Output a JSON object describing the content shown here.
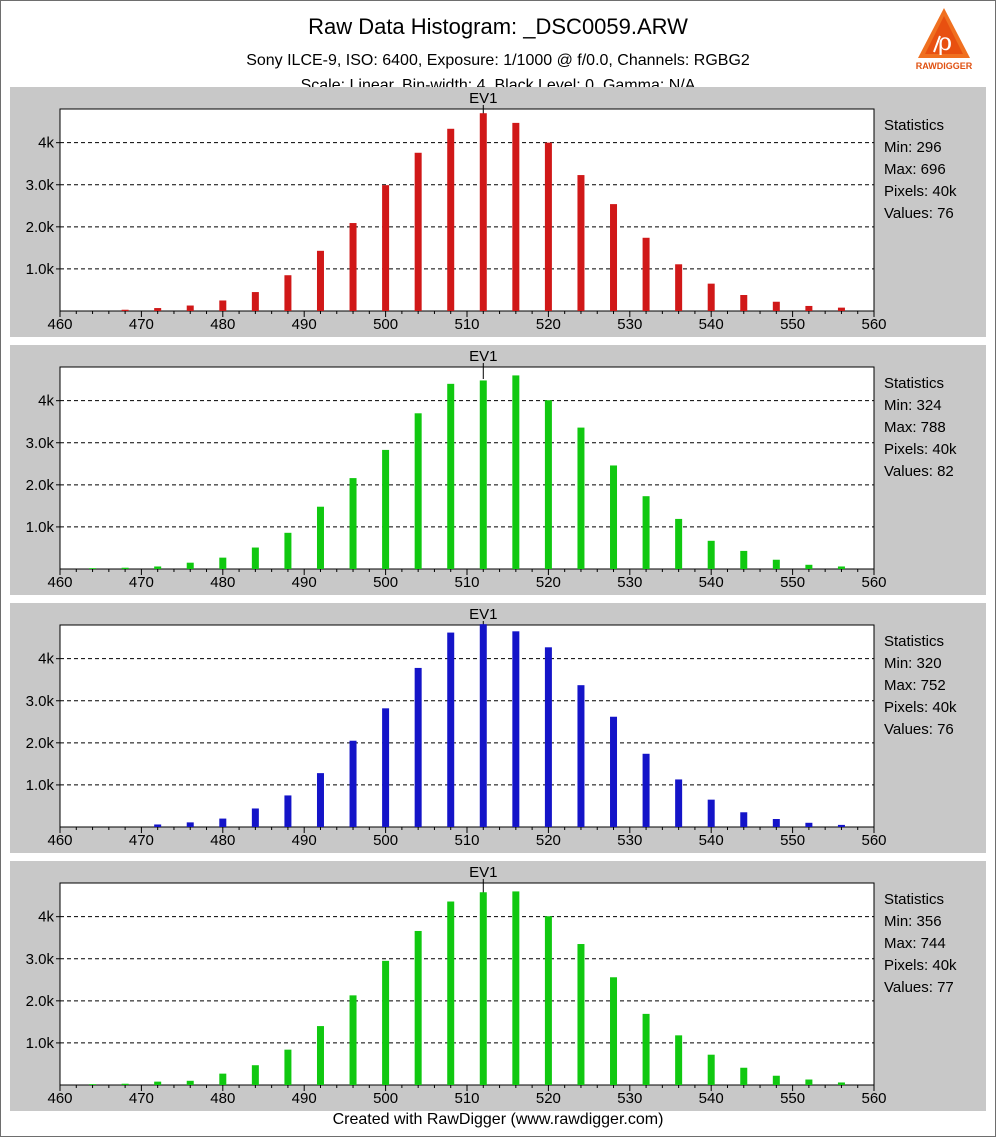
{
  "header": {
    "title": "Raw Data Histogram: _DSC0059.ARW",
    "subtitle": "Sony ILCE-9, ISO: 6400, Exposure: 1/1000 @ f/0.0, Channels: RGBG2",
    "subtitle2": "Scale: Linear, Bin-width: 4, Black Level: 0, Gamma: N/A"
  },
  "logo": {
    "text": "RAWDIGGER",
    "icon": "rawdigger-logo"
  },
  "footer": {
    "text": "Created with RawDigger (www.rawdigger.com)"
  },
  "colors": {
    "red": "#d01818",
    "green": "#10c810",
    "blue": "#1414c8",
    "panel_bg": "#c8c8c8",
    "plot_bg": "#ffffff"
  },
  "chart_data": [
    {
      "type": "bar",
      "channel": "red",
      "color": "#d01818",
      "title": "EV1",
      "xlim": [
        460,
        560
      ],
      "ylim": [
        0,
        4800
      ],
      "x_ticks": [
        460,
        470,
        480,
        490,
        500,
        510,
        520,
        530,
        540,
        550,
        560
      ],
      "y_ticks": [
        1000,
        2000,
        3000,
        4000
      ],
      "y_tick_labels": [
        "1.0k",
        "2.0k",
        "3.0k",
        "4k"
      ],
      "x": [
        468,
        472,
        476,
        480,
        484,
        488,
        492,
        496,
        500,
        504,
        508,
        512,
        516,
        520,
        524,
        528,
        532,
        536,
        540,
        544,
        548,
        552,
        556
      ],
      "values": [
        30,
        70,
        130,
        250,
        450,
        850,
        1430,
        2090,
        2990,
        3760,
        4330,
        4700,
        4470,
        4000,
        3230,
        2540,
        1740,
        1110,
        650,
        380,
        220,
        120,
        80
      ],
      "stats": {
        "heading": "Statistics",
        "min": "Min: 296",
        "max": "Max: 696",
        "pixels": "Pixels: 40k",
        "values": "Values: 76"
      }
    },
    {
      "type": "bar",
      "channel": "green",
      "color": "#10c810",
      "title": "EV1",
      "xlim": [
        460,
        560
      ],
      "ylim": [
        0,
        4800
      ],
      "x_ticks": [
        460,
        470,
        480,
        490,
        500,
        510,
        520,
        530,
        540,
        550,
        560
      ],
      "y_ticks": [
        1000,
        2000,
        3000,
        4000
      ],
      "y_tick_labels": [
        "1.0k",
        "2.0k",
        "3.0k",
        "4k"
      ],
      "x": [
        464,
        468,
        472,
        476,
        480,
        484,
        488,
        492,
        496,
        500,
        504,
        508,
        512,
        516,
        520,
        524,
        528,
        532,
        536,
        540,
        544,
        548,
        552,
        556
      ],
      "values": [
        20,
        30,
        60,
        150,
        270,
        510,
        860,
        1480,
        2160,
        2830,
        3700,
        4400,
        4480,
        4600,
        4010,
        3360,
        2460,
        1730,
        1190,
        670,
        430,
        220,
        100,
        60
      ],
      "stats": {
        "heading": "Statistics",
        "min": "Min: 324",
        "max": "Max: 788",
        "pixels": "Pixels: 40k",
        "values": "Values: 82"
      }
    },
    {
      "type": "bar",
      "channel": "blue",
      "color": "#1414c8",
      "title": "EV1",
      "xlim": [
        460,
        560
      ],
      "ylim": [
        0,
        4800
      ],
      "x_ticks": [
        460,
        470,
        480,
        490,
        500,
        510,
        520,
        530,
        540,
        550,
        560
      ],
      "y_ticks": [
        1000,
        2000,
        3000,
        4000
      ],
      "y_tick_labels": [
        "1.0k",
        "2.0k",
        "3.0k",
        "4k"
      ],
      "x": [
        472,
        476,
        480,
        484,
        488,
        492,
        496,
        500,
        504,
        508,
        512,
        516,
        520,
        524,
        528,
        532,
        536,
        540,
        544,
        548,
        552,
        556
      ],
      "values": [
        60,
        110,
        200,
        440,
        750,
        1280,
        2050,
        2820,
        3780,
        4620,
        4820,
        4650,
        4270,
        3370,
        2620,
        1740,
        1130,
        650,
        350,
        190,
        100,
        50
      ],
      "stats": {
        "heading": "Statistics",
        "min": "Min: 320",
        "max": "Max: 752",
        "pixels": "Pixels: 40k",
        "values": "Values: 76"
      }
    },
    {
      "type": "bar",
      "channel": "green2",
      "color": "#10c810",
      "title": "EV1",
      "xlim": [
        460,
        560
      ],
      "ylim": [
        0,
        4800
      ],
      "x_ticks": [
        460,
        470,
        480,
        490,
        500,
        510,
        520,
        530,
        540,
        550,
        560
      ],
      "y_ticks": [
        1000,
        2000,
        3000,
        4000
      ],
      "y_tick_labels": [
        "1.0k",
        "2.0k",
        "3.0k",
        "4k"
      ],
      "x": [
        464,
        468,
        472,
        476,
        480,
        484,
        488,
        492,
        496,
        500,
        504,
        508,
        512,
        516,
        520,
        524,
        528,
        532,
        536,
        540,
        544,
        548,
        552,
        556
      ],
      "values": [
        20,
        30,
        80,
        100,
        270,
        470,
        840,
        1400,
        2130,
        2950,
        3660,
        4360,
        4580,
        4600,
        4010,
        3350,
        2560,
        1690,
        1180,
        720,
        410,
        220,
        130,
        60
      ],
      "stats": {
        "heading": "Statistics",
        "min": "Min: 356",
        "max": "Max: 744",
        "pixels": "Pixels: 40k",
        "values": "Values: 77"
      }
    }
  ]
}
